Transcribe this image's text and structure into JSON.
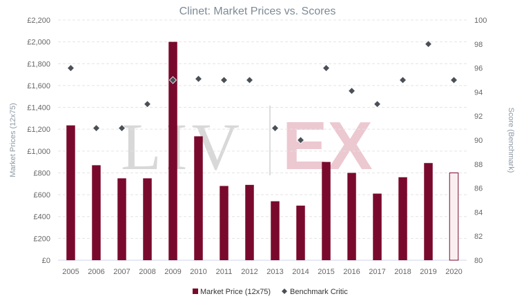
{
  "chart_data": {
    "type": "bar",
    "title": "Clinet: Market Prices vs. Scores",
    "categories": [
      "2005",
      "2006",
      "2007",
      "2008",
      "2009",
      "2010",
      "2011",
      "2012",
      "2013",
      "2014",
      "2015",
      "2016",
      "2017",
      "2018",
      "2019",
      "2020"
    ],
    "series": [
      {
        "name": "Market Price (12x75)",
        "kind": "bar",
        "axis": "left",
        "color": "#7a0a2d",
        "values": [
          1235,
          870,
          750,
          750,
          2000,
          1135,
          680,
          690,
          540,
          500,
          900,
          800,
          610,
          760,
          890,
          800
        ],
        "highlight_last_as_outline": true,
        "outline_fill": "#fbeef1"
      },
      {
        "name": "Benchmark Critic",
        "kind": "scatter",
        "marker": "diamond",
        "axis": "right",
        "color": "#4a5058",
        "values": [
          96,
          91,
          91,
          93,
          95,
          95.1,
          95,
          95,
          91,
          90,
          96,
          94.1,
          93,
          95,
          98,
          95
        ]
      }
    ],
    "y_left": {
      "label": "Market Prices (12x75)",
      "min": 0,
      "max": 2200,
      "step": 200,
      "ticks": [
        "£0",
        "£200",
        "£400",
        "£600",
        "£800",
        "£1,000",
        "£1,200",
        "£1,400",
        "£1,600",
        "£1,800",
        "£2,000",
        "£2,200"
      ]
    },
    "y_right": {
      "label": "Score (Benchmark)",
      "min": 80,
      "max": 100,
      "step": 2,
      "ticks": [
        "80",
        "82",
        "84",
        "86",
        "88",
        "90",
        "92",
        "94",
        "96",
        "98",
        "100"
      ]
    },
    "grid": "horizontal-dashed",
    "legend": {
      "position": "bottom-center",
      "items": [
        "Market Price (12x75)",
        "Benchmark Critic"
      ]
    },
    "watermark": {
      "text_left": "LIV",
      "text_right": "EX",
      "color_left": "#d8d8d8",
      "color_right": "#ecc8d1"
    }
  }
}
